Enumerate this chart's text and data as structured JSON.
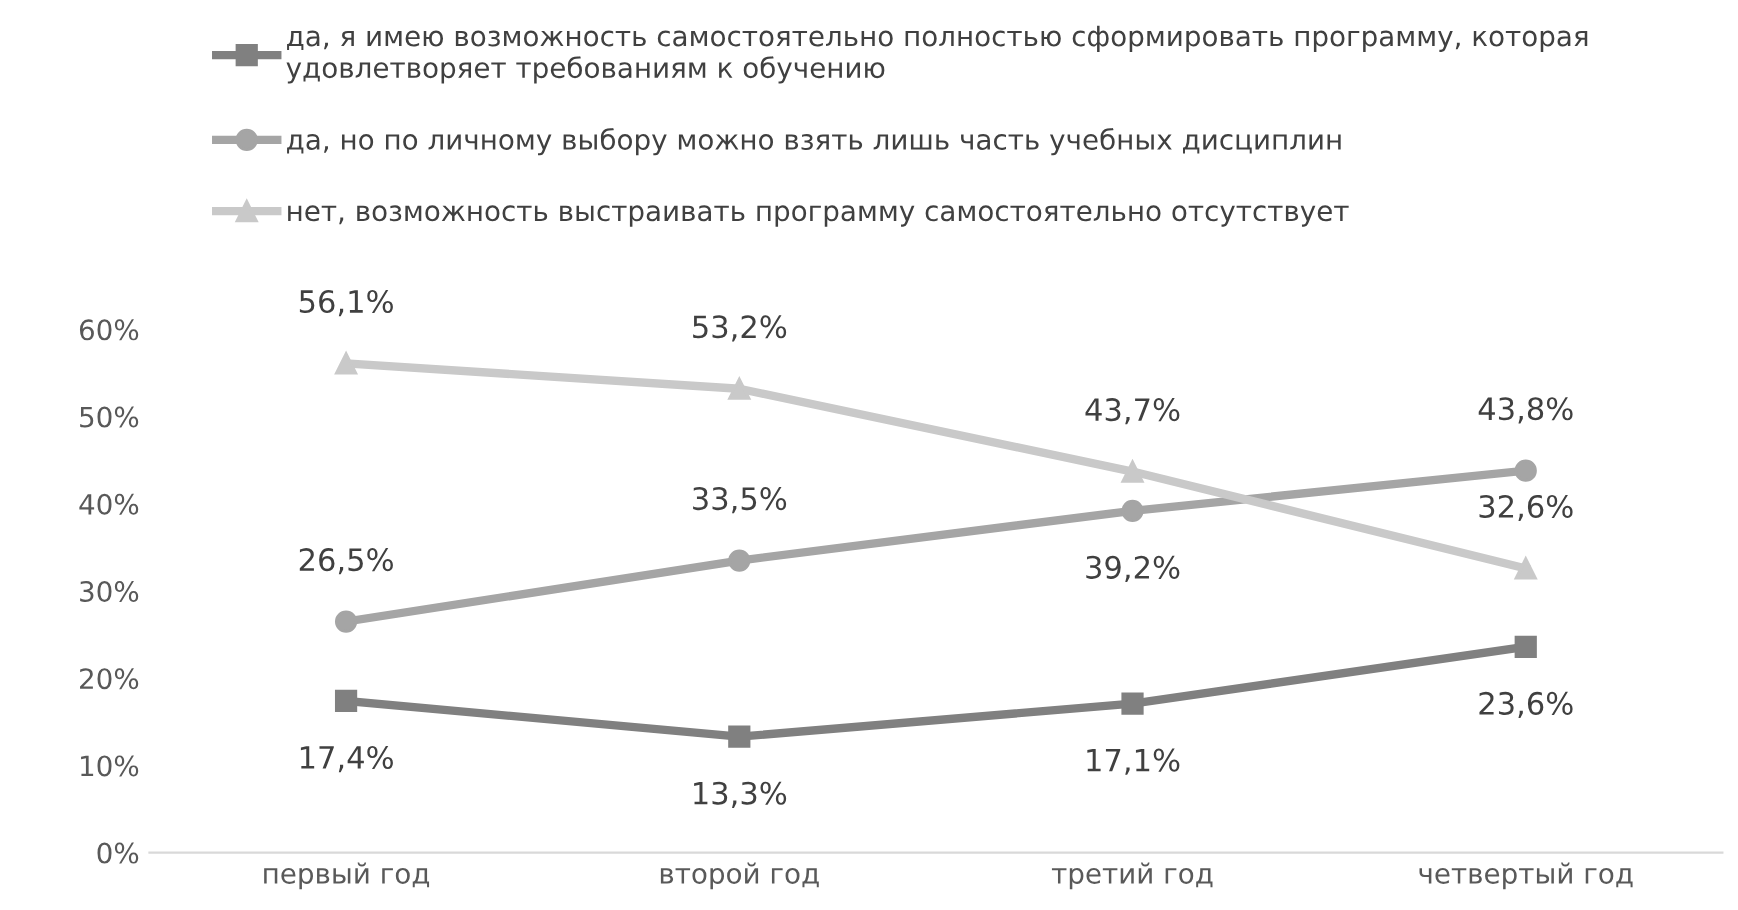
{
  "chart_data": {
    "type": "line",
    "categories": [
      "первый год",
      "второй год",
      "третий год",
      "четвертый год"
    ],
    "series": [
      {
        "name": "да, я имею возможность самостоятельно полностью сформировать программу, которая\nудовлетворяет требованиям к обучению",
        "color": "#808080",
        "marker": "square",
        "values": [
          17.4,
          13.3,
          17.1,
          23.6
        ],
        "value_labels": [
          "17,4%",
          "13,3%",
          "17,1%",
          "23,6%"
        ]
      },
      {
        "name": "да, но по личному выбору можно взять лишь часть учебных дисциплин",
        "color": "#a5a5a5",
        "marker": "circle",
        "values": [
          26.5,
          33.5,
          39.2,
          43.8
        ],
        "value_labels": [
          "26,5%",
          "33,5%",
          "39,2%",
          "43,8%"
        ]
      },
      {
        "name": "нет, возможность выстраивать программу самостоятельно отсутствует",
        "color": "#c9c9c9",
        "marker": "triangle",
        "values": [
          56.1,
          53.2,
          43.7,
          32.6
        ],
        "value_labels": [
          "56,1%",
          "53,2%",
          "43,7%",
          "32,6%"
        ]
      }
    ],
    "ylim": [
      0,
      60
    ],
    "yticks": [
      {
        "value": 0,
        "label": "0%"
      },
      {
        "value": 10,
        "label": "10%"
      },
      {
        "value": 20,
        "label": "20%"
      },
      {
        "value": 30,
        "label": "30%"
      },
      {
        "value": 40,
        "label": "40%"
      },
      {
        "value": 50,
        "label": "50%"
      },
      {
        "value": 60,
        "label": "60%"
      }
    ],
    "grid": false,
    "legend": "top"
  }
}
